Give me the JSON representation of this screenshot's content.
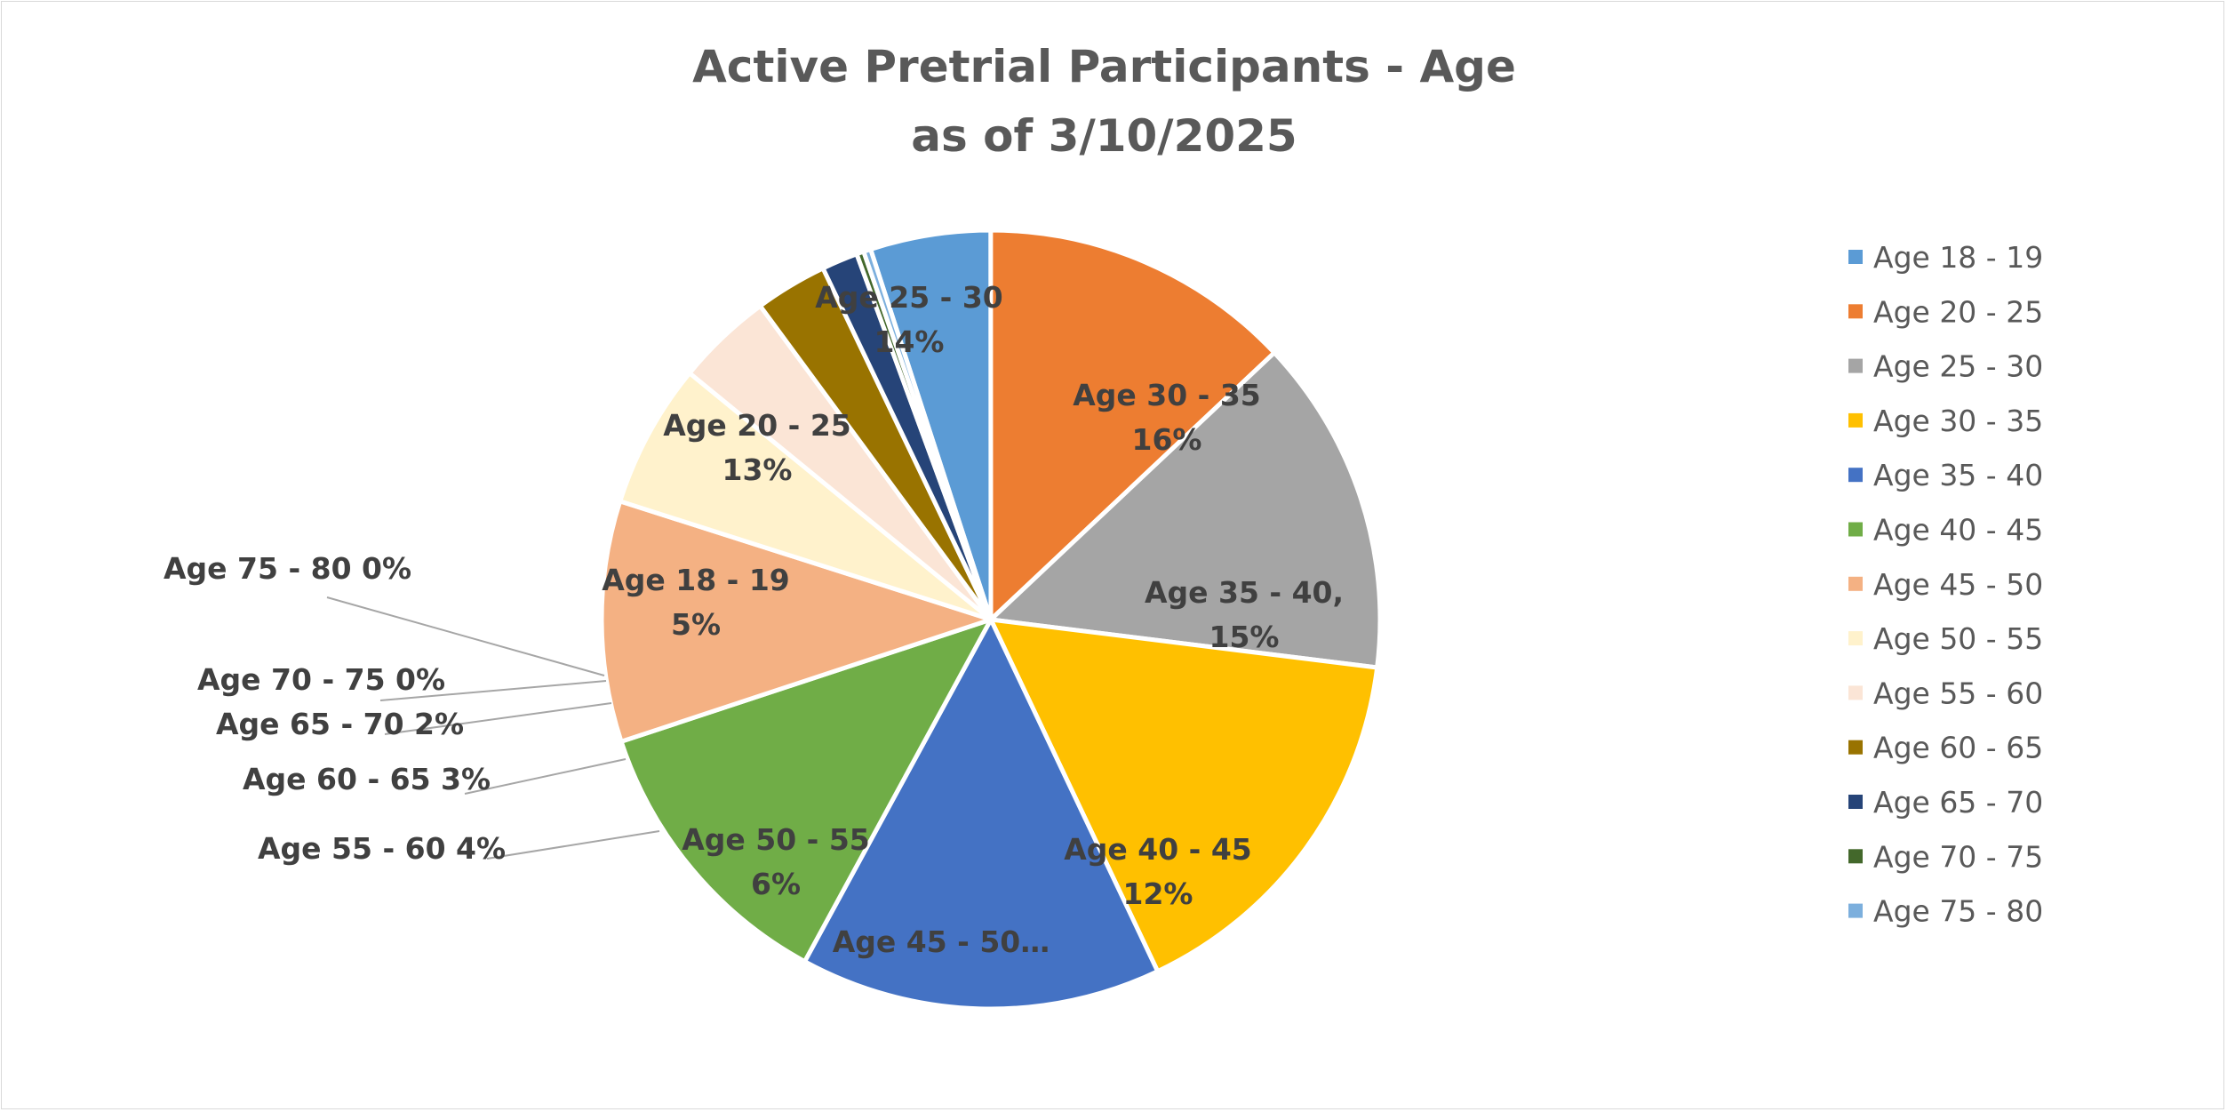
{
  "chart_data": {
    "type": "pie",
    "title": [
      "Active Pretrial Participants - Age",
      "as of 3/10/2025"
    ],
    "legend_position": "right",
    "slices": [
      {
        "name": "Age 18 - 19",
        "value": 5,
        "label_lines": [
          "Age 18 - 19",
          "5%"
        ],
        "color": "#5b9bd5",
        "label_placement": "inside"
      },
      {
        "name": "Age 20 - 25",
        "value": 13,
        "label_lines": [
          "Age 20 - 25",
          "13%"
        ],
        "color": "#ed7d31",
        "label_placement": "inside"
      },
      {
        "name": "Age 25 - 30",
        "value": 14,
        "label_lines": [
          "Age 25 - 30",
          "14%"
        ],
        "color": "#a5a5a5",
        "label_placement": "inside"
      },
      {
        "name": "Age 30 - 35",
        "value": 16,
        "label_lines": [
          "Age 30 - 35",
          "16%"
        ],
        "color": "#ffc000",
        "label_placement": "inside"
      },
      {
        "name": "Age 35 - 40",
        "value": 15,
        "label_lines": [
          "Age 35 - 40,",
          "15%"
        ],
        "color": "#4472c4",
        "label_placement": "inside"
      },
      {
        "name": "Age 40 - 45",
        "value": 12,
        "label_lines": [
          "Age 40 - 45",
          "12%"
        ],
        "color": "#70ad47",
        "label_placement": "inside"
      },
      {
        "name": "Age 45 - 50",
        "value": 10,
        "label_lines": [
          "Age 45 - 50…"
        ],
        "color": "#f4b183",
        "label_placement": "inside"
      },
      {
        "name": "Age 50 - 55",
        "value": 6,
        "label_lines": [
          "Age 50 - 55",
          "6%"
        ],
        "color": "#fff2cc",
        "label_placement": "inside"
      },
      {
        "name": "Age 55 - 60",
        "value": 4,
        "label_lines": [
          "Age 55 - 60  4%"
        ],
        "color": "#fbe5d6",
        "label_placement": "outside"
      },
      {
        "name": "Age 60 - 65",
        "value": 3,
        "label_lines": [
          "Age 60 - 65 3%"
        ],
        "color": "#997300",
        "label_placement": "outside"
      },
      {
        "name": "Age 65 - 70",
        "value": 1.5,
        "label_lines": [
          "Age 65 - 70 2%"
        ],
        "color": "#264478",
        "label_placement": "outside"
      },
      {
        "name": "Age 70 - 75",
        "value": 0.3,
        "label_lines": [
          "Age 70 - 75 0%"
        ],
        "color": "#43682b",
        "label_placement": "outside"
      },
      {
        "name": "Age 75 - 80",
        "value": 0.3,
        "label_lines": [
          "Age 75 - 80 0%"
        ],
        "color": "#7cafdd",
        "label_placement": "outside"
      }
    ]
  }
}
